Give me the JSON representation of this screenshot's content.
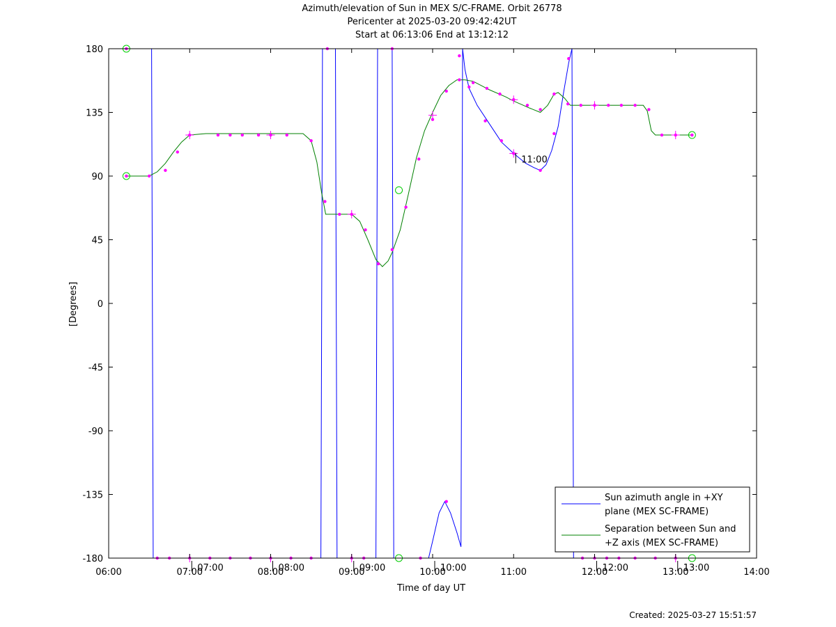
{
  "title": {
    "line1": "Azimuth/elevation of Sun in MEX S/C-FRAME.  Orbit 26778",
    "line2": "Pericenter at 2025-03-20 09:42:42UT",
    "line3": "Start at 06:13:06 End at 13:12:12"
  },
  "footer": {
    "created": "Created: 2025-03-27 15:51:57"
  },
  "chart_data": {
    "type": "line",
    "xlabel": "Time of day UT",
    "ylabel": "[Degrees]",
    "xlim": [
      6,
      14
    ],
    "ylim": [
      -180,
      180
    ],
    "x_ticks": [
      6,
      7,
      8,
      9,
      10,
      11,
      12,
      13,
      14
    ],
    "x_tick_labels": [
      "06:00",
      "07:00",
      "08:00",
      "09:00",
      "10:00",
      "11:00",
      "12:00",
      "13:00",
      "14:00"
    ],
    "y_ticks": [
      180,
      135,
      90,
      45,
      0,
      -45,
      -90,
      -135,
      -180
    ],
    "y_tick_labels": [
      "180",
      "135",
      "90",
      "45",
      "0",
      "-45",
      "-90",
      "-135",
      "-180"
    ],
    "legend_position": "bottom-right",
    "hour_annotations": [
      {
        "label": "07:00",
        "x": 7.0,
        "y": -180
      },
      {
        "label": "08:00",
        "x": 8.0,
        "y": -180
      },
      {
        "label": "09:00",
        "x": 9.0,
        "y": -180
      },
      {
        "label": "10:00",
        "x": 10.0,
        "y": -180
      },
      {
        "label": "11:00",
        "x": 11.0,
        "y": 103
      },
      {
        "label": "12:00",
        "x": 12.0,
        "y": -180
      },
      {
        "label": "13:00",
        "x": 13.0,
        "y": -180
      }
    ],
    "series": [
      {
        "name": "Sun azimuth angle in +XY plane (MEX SC-FRAME)",
        "legend_lines": [
          "Sun azimuth angle in +XY",
          "plane (MEX SC-FRAME)"
        ],
        "color": "#0000ff",
        "segments": [
          [
            [
              6.2183,
              180
            ],
            [
              6.53,
              180
            ],
            [
              6.55,
              -180
            ],
            [
              8.62,
              -180
            ],
            [
              8.64,
              180
            ]
          ],
          [
            [
              8.64,
              180
            ],
            [
              8.8,
              180
            ],
            [
              8.82,
              -180
            ],
            [
              9.3,
              -180
            ],
            [
              9.32,
              180
            ]
          ],
          [
            [
              9.32,
              180
            ],
            [
              9.5,
              180
            ],
            [
              9.52,
              -180
            ],
            [
              9.95,
              -180
            ],
            [
              10.0,
              -168
            ],
            [
              10.08,
              -148
            ],
            [
              10.15,
              -140
            ],
            [
              10.22,
              -148
            ],
            [
              10.3,
              -162
            ],
            [
              10.35,
              -172
            ],
            [
              10.37,
              180
            ]
          ],
          [
            [
              10.37,
              180
            ],
            [
              10.4,
              165
            ],
            [
              10.45,
              152
            ],
            [
              10.55,
              140
            ],
            [
              10.7,
              127
            ],
            [
              10.85,
              114
            ],
            [
              11.0,
              106
            ],
            [
              11.15,
              99
            ],
            [
              11.25,
              96
            ],
            [
              11.33,
              94
            ],
            [
              11.4,
              98
            ],
            [
              11.47,
              108
            ],
            [
              11.55,
              125
            ],
            [
              11.62,
              150
            ],
            [
              11.68,
              170
            ],
            [
              11.72,
              180
            ]
          ],
          [
            [
              11.72,
              180
            ],
            [
              11.74,
              -180
            ],
            [
              13.2033,
              -180
            ]
          ]
        ],
        "markers": [
          [
            6.2183,
            180
          ],
          [
            6.6,
            -180
          ],
          [
            6.75,
            -180
          ],
          [
            7.0,
            -180
          ],
          [
            7.25,
            -180
          ],
          [
            7.5,
            -180
          ],
          [
            7.75,
            -180
          ],
          [
            8.0,
            -180
          ],
          [
            8.25,
            -180
          ],
          [
            8.5,
            -180
          ],
          [
            8.7,
            180
          ],
          [
            9.0,
            -180
          ],
          [
            9.15,
            -180
          ],
          [
            9.5,
            180
          ],
          [
            9.85,
            -180
          ],
          [
            10.17,
            -140
          ],
          [
            10.33,
            175
          ],
          [
            10.45,
            153
          ],
          [
            10.65,
            129
          ],
          [
            10.85,
            115
          ],
          [
            11.0,
            106
          ],
          [
            11.33,
            94
          ],
          [
            11.5,
            120
          ],
          [
            11.68,
            173
          ],
          [
            11.85,
            -180
          ],
          [
            12.0,
            -180
          ],
          [
            12.15,
            -180
          ],
          [
            12.3,
            -180
          ],
          [
            12.5,
            -180
          ],
          [
            12.75,
            -180
          ],
          [
            13.0,
            -180
          ]
        ],
        "crosses": [
          [
            7.0,
            -180
          ],
          [
            8.0,
            -180
          ],
          [
            9.0,
            -180
          ],
          [
            11.0,
            106
          ],
          [
            13.0,
            -180
          ]
        ],
        "endpoints": [
          [
            9.5833,
            -180
          ],
          [
            13.2033,
            -180
          ]
        ]
      },
      {
        "name": "Separation between Sun and +Z axis (MEX SC-FRAME)",
        "legend_lines": [
          "Separation between Sun and",
          "+Z axis (MEX SC-FRAME)"
        ],
        "color": "#008000",
        "segments": [
          [
            [
              6.2183,
              90
            ],
            [
              6.3,
              90
            ],
            [
              6.4,
              90
            ],
            [
              6.5,
              90
            ],
            [
              6.6,
              93
            ],
            [
              6.7,
              99
            ],
            [
              6.8,
              107
            ],
            [
              6.9,
              114
            ],
            [
              7.0,
              119
            ],
            [
              7.2,
              120
            ],
            [
              7.5,
              120
            ],
            [
              8.0,
              120
            ],
            [
              8.4,
              120
            ],
            [
              8.5,
              115
            ],
            [
              8.57,
              100
            ],
            [
              8.63,
              78
            ],
            [
              8.68,
              63
            ],
            [
              8.75,
              63
            ],
            [
              9.0,
              63
            ],
            [
              9.1,
              58
            ],
            [
              9.2,
              45
            ],
            [
              9.3,
              31
            ],
            [
              9.38,
              26
            ],
            [
              9.45,
              30
            ],
            [
              9.5,
              36
            ],
            [
              9.6,
              52
            ],
            [
              9.7,
              77
            ],
            [
              9.8,
              103
            ],
            [
              9.9,
              122
            ],
            [
              10.0,
              135
            ],
            [
              10.1,
              147
            ],
            [
              10.2,
              154
            ],
            [
              10.3,
              158
            ],
            [
              10.4,
              158
            ],
            [
              10.5,
              157
            ],
            [
              10.7,
              151
            ],
            [
              10.9,
              146
            ],
            [
              11.0,
              143
            ],
            [
              11.2,
              138
            ],
            [
              11.33,
              135
            ],
            [
              11.42,
              140
            ],
            [
              11.5,
              148
            ],
            [
              11.55,
              149
            ],
            [
              11.63,
              145
            ],
            [
              11.7,
              140
            ],
            [
              11.85,
              140
            ],
            [
              12.0,
              140
            ],
            [
              12.3,
              140
            ],
            [
              12.6,
              140
            ],
            [
              12.65,
              136
            ],
            [
              12.7,
              122
            ],
            [
              12.75,
              119
            ],
            [
              12.9,
              119
            ],
            [
              13.0,
              119
            ],
            [
              13.2033,
              119
            ]
          ]
        ],
        "markers": [
          [
            6.2183,
            90
          ],
          [
            6.5,
            90
          ],
          [
            6.7,
            94
          ],
          [
            6.85,
            107
          ],
          [
            7.0,
            119
          ],
          [
            7.35,
            119
          ],
          [
            7.5,
            119
          ],
          [
            7.65,
            119
          ],
          [
            7.85,
            119
          ],
          [
            8.0,
            119
          ],
          [
            8.2,
            119
          ],
          [
            8.5,
            115
          ],
          [
            8.67,
            72
          ],
          [
            8.85,
            63
          ],
          [
            9.0,
            63
          ],
          [
            9.17,
            52
          ],
          [
            9.33,
            28
          ],
          [
            9.5,
            38
          ],
          [
            9.67,
            68
          ],
          [
            9.83,
            102
          ],
          [
            10.0,
            130
          ],
          [
            10.17,
            150
          ],
          [
            10.33,
            158
          ],
          [
            10.5,
            156
          ],
          [
            10.67,
            152
          ],
          [
            10.83,
            148
          ],
          [
            11.0,
            144
          ],
          [
            11.17,
            140
          ],
          [
            11.33,
            137
          ],
          [
            11.5,
            148
          ],
          [
            11.67,
            141
          ],
          [
            11.83,
            140
          ],
          [
            12.0,
            140
          ],
          [
            12.17,
            140
          ],
          [
            12.33,
            140
          ],
          [
            12.5,
            140
          ],
          [
            12.67,
            137
          ],
          [
            12.83,
            119
          ],
          [
            13.0,
            119
          ],
          [
            13.2033,
            119
          ]
        ],
        "crosses": [
          [
            7.0,
            119
          ],
          [
            8.0,
            119
          ],
          [
            9.0,
            63
          ],
          [
            10.0,
            133
          ],
          [
            11.0,
            144
          ],
          [
            12.0,
            140
          ],
          [
            13.0,
            119
          ]
        ],
        "endpoints": [
          [
            6.2183,
            90
          ],
          [
            6.2183,
            180
          ],
          [
            9.5833,
            80
          ],
          [
            13.2033,
            119
          ]
        ]
      }
    ]
  }
}
